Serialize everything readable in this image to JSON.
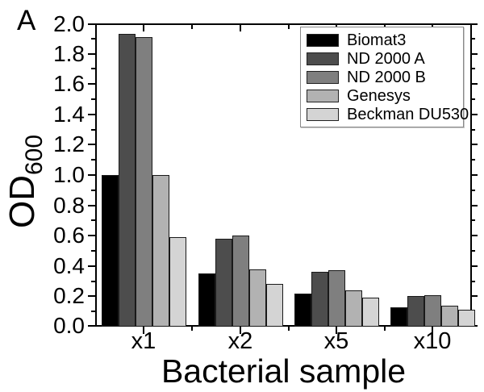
{
  "figure": {
    "panel_label": "A",
    "background": "#ffffff"
  },
  "chart_data": {
    "type": "bar",
    "title": "",
    "xlabel": "Bacterial sample",
    "ylabel": "OD",
    "ylabel_subscript": "600",
    "categories": [
      "x1",
      "x2",
      "x5",
      "x10"
    ],
    "series": [
      {
        "name": "Biomat3",
        "color": "#000000",
        "values": [
          1.0,
          0.35,
          0.22,
          0.13
        ]
      },
      {
        "name": "ND 2000 A",
        "color": "#4d4d4d",
        "values": [
          1.93,
          0.58,
          0.36,
          0.2
        ]
      },
      {
        "name": "ND 2000 B",
        "color": "#7f7f7f",
        "values": [
          1.91,
          0.6,
          0.37,
          0.21
        ]
      },
      {
        "name": "Genesys",
        "color": "#b2b2b2",
        "values": [
          1.0,
          0.38,
          0.24,
          0.14
        ]
      },
      {
        "name": "Beckman DU530",
        "color": "#d4d4d4",
        "values": [
          0.59,
          0.28,
          0.19,
          0.11
        ]
      }
    ],
    "ylim": [
      0,
      2.0
    ],
    "ytick_major_step": 0.2,
    "ytick_minor_step": 0.1,
    "grid": false,
    "legend_position": "top-right",
    "axis_color": "#000000",
    "bar_border_color": "#1a1a1a"
  }
}
